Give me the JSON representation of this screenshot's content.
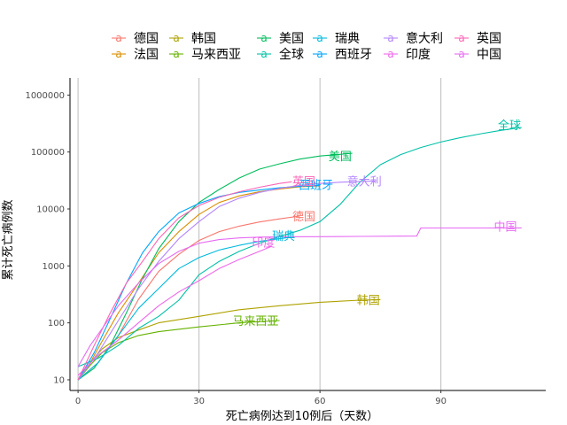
{
  "chart_data": {
    "type": "line",
    "title": "",
    "xlabel": "死亡病例达到10例后（天数）",
    "ylabel": "累计死亡病例数",
    "x_ticks": [
      0,
      30,
      60,
      90
    ],
    "x_tick_labels": [
      "0",
      "30",
      "60",
      "90"
    ],
    "xlim": [
      -2,
      116
    ],
    "y_scale": "log10",
    "y_ticks": [
      10,
      100,
      1000,
      10000,
      100000,
      1000000
    ],
    "y_tick_labels": [
      "10",
      "100",
      "1000",
      "10000",
      "100000",
      "1000000"
    ],
    "ylim": [
      6.5,
      2000000
    ],
    "grid": "vertical major lines only",
    "legend_position": "top",
    "series": [
      {
        "name": "德国",
        "color": "#F8766D",
        "points": [
          [
            0,
            10
          ],
          [
            5,
            20
          ],
          [
            10,
            60
          ],
          [
            15,
            260
          ],
          [
            20,
            800
          ],
          [
            25,
            1600
          ],
          [
            30,
            2800
          ],
          [
            35,
            4000
          ],
          [
            40,
            5000
          ],
          [
            45,
            5900
          ],
          [
            50,
            6700
          ],
          [
            55,
            7500
          ]
        ]
      },
      {
        "name": "法国",
        "color": "#DB8E00",
        "points": [
          [
            0,
            10
          ],
          [
            3,
            20
          ],
          [
            6,
            48
          ],
          [
            10,
            150
          ],
          [
            15,
            500
          ],
          [
            20,
            1700
          ],
          [
            25,
            4000
          ],
          [
            30,
            8000
          ],
          [
            35,
            13000
          ],
          [
            40,
            17000
          ],
          [
            45,
            20000
          ],
          [
            50,
            22500
          ],
          [
            55,
            24500
          ],
          [
            60,
            25500
          ]
        ]
      },
      {
        "name": "韩国",
        "color": "#AEA200",
        "points": [
          [
            0,
            10
          ],
          [
            3,
            20
          ],
          [
            6,
            35
          ],
          [
            10,
            55
          ],
          [
            15,
            75
          ],
          [
            20,
            100
          ],
          [
            30,
            130
          ],
          [
            40,
            170
          ],
          [
            50,
            200
          ],
          [
            60,
            230
          ],
          [
            70,
            250
          ],
          [
            75,
            256
          ]
        ]
      },
      {
        "name": "马来西亚",
        "color": "#64B200",
        "points": [
          [
            0,
            10
          ],
          [
            3,
            18
          ],
          [
            6,
            30
          ],
          [
            10,
            45
          ],
          [
            15,
            60
          ],
          [
            20,
            70
          ],
          [
            30,
            85
          ],
          [
            40,
            100
          ],
          [
            50,
            110
          ]
        ]
      },
      {
        "name": "美国",
        "color": "#00BD5C",
        "points": [
          [
            0,
            10
          ],
          [
            4,
            16
          ],
          [
            8,
            40
          ],
          [
            12,
            150
          ],
          [
            16,
            600
          ],
          [
            20,
            2000
          ],
          [
            25,
            6000
          ],
          [
            30,
            13000
          ],
          [
            35,
            22000
          ],
          [
            40,
            35000
          ],
          [
            45,
            50000
          ],
          [
            50,
            62000
          ],
          [
            55,
            75000
          ],
          [
            60,
            85000
          ],
          [
            68,
            95000
          ]
        ]
      },
      {
        "name": "全球",
        "color": "#00C1A7",
        "points": [
          [
            0,
            17
          ],
          [
            5,
            24
          ],
          [
            10,
            40
          ],
          [
            15,
            80
          ],
          [
            20,
            130
          ],
          [
            25,
            250
          ],
          [
            30,
            700
          ],
          [
            35,
            1200
          ],
          [
            40,
            1800
          ],
          [
            45,
            2500
          ],
          [
            50,
            3300
          ],
          [
            55,
            4200
          ],
          [
            60,
            6000
          ],
          [
            65,
            12000
          ],
          [
            70,
            30000
          ],
          [
            75,
            60000
          ],
          [
            80,
            90000
          ],
          [
            85,
            120000
          ],
          [
            90,
            150000
          ],
          [
            95,
            180000
          ],
          [
            100,
            210000
          ],
          [
            105,
            240000
          ],
          [
            110,
            270000
          ]
        ]
      },
      {
        "name": "瑞典",
        "color": "#00BADE",
        "points": [
          [
            0,
            10
          ],
          [
            5,
            20
          ],
          [
            10,
            60
          ],
          [
            15,
            180
          ],
          [
            20,
            400
          ],
          [
            25,
            900
          ],
          [
            30,
            1400
          ],
          [
            35,
            1900
          ],
          [
            40,
            2300
          ],
          [
            45,
            2700
          ],
          [
            50,
            3000
          ],
          [
            53,
            3200
          ]
        ]
      },
      {
        "name": "西班牙",
        "color": "#00A6FF",
        "points": [
          [
            0,
            10
          ],
          [
            4,
            30
          ],
          [
            8,
            120
          ],
          [
            12,
            500
          ],
          [
            16,
            1700
          ],
          [
            20,
            4000
          ],
          [
            25,
            8500
          ],
          [
            30,
            12500
          ],
          [
            35,
            16500
          ],
          [
            40,
            19500
          ],
          [
            45,
            21500
          ],
          [
            50,
            23500
          ],
          [
            55,
            25000
          ],
          [
            60,
            26000
          ]
        ]
      },
      {
        "name": "意大利",
        "color": "#B385FF",
        "points": [
          [
            0,
            10
          ],
          [
            5,
            30
          ],
          [
            10,
            110
          ],
          [
            15,
            400
          ],
          [
            20,
            1200
          ],
          [
            25,
            3000
          ],
          [
            30,
            6000
          ],
          [
            35,
            11000
          ],
          [
            40,
            15500
          ],
          [
            45,
            19500
          ],
          [
            50,
            23000
          ],
          [
            55,
            26000
          ],
          [
            60,
            28000
          ],
          [
            65,
            29500
          ],
          [
            70,
            30500
          ],
          [
            74,
            31000
          ]
        ]
      },
      {
        "name": "印度",
        "color": "#EF67EB",
        "points": [
          [
            0,
            12
          ],
          [
            5,
            27
          ],
          [
            10,
            50
          ],
          [
            15,
            100
          ],
          [
            20,
            200
          ],
          [
            25,
            350
          ],
          [
            30,
            550
          ],
          [
            35,
            900
          ],
          [
            40,
            1300
          ],
          [
            45,
            1800
          ],
          [
            48,
            2200
          ]
        ]
      },
      {
        "name": "英国",
        "color": "#FF63B6",
        "points": [
          [
            0,
            10
          ],
          [
            4,
            40
          ],
          [
            8,
            150
          ],
          [
            12,
            500
          ],
          [
            16,
            1200
          ],
          [
            20,
            3000
          ],
          [
            25,
            7000
          ],
          [
            30,
            11500
          ],
          [
            35,
            16000
          ],
          [
            40,
            20000
          ],
          [
            45,
            24000
          ],
          [
            50,
            28000
          ],
          [
            53,
            30000
          ]
        ]
      },
      {
        "name": "中国",
        "color": "#E76BF3",
        "points": [
          [
            0,
            17
          ],
          [
            3,
            40
          ],
          [
            6,
            80
          ],
          [
            10,
            200
          ],
          [
            15,
            500
          ],
          [
            20,
            1100
          ],
          [
            25,
            1800
          ],
          [
            30,
            2500
          ],
          [
            35,
            2900
          ],
          [
            40,
            3100
          ],
          [
            45,
            3200
          ],
          [
            50,
            3250
          ],
          [
            60,
            3260
          ],
          [
            70,
            3300
          ],
          [
            80,
            3330
          ],
          [
            84,
            3340
          ],
          [
            85,
            4630
          ],
          [
            90,
            4635
          ],
          [
            100,
            4640
          ],
          [
            110,
            4645
          ]
        ]
      }
    ],
    "labels": [
      {
        "text": "德国",
        "series": "德国",
        "at": [
          56,
          7500
        ]
      },
      {
        "text": "韩国",
        "series": "韩国",
        "at": [
          72,
          256
        ]
      },
      {
        "text": "马来西亚",
        "series": "马来西亚",
        "at": [
          44,
          110
        ]
      },
      {
        "text": "美国",
        "series": "美国",
        "at": [
          65,
          85000
        ]
      },
      {
        "text": "全球",
        "series": "全球",
        "at": [
          107,
          300000
        ]
      },
      {
        "text": "瑞典",
        "series": "瑞典",
        "at": [
          51,
          3400
        ]
      },
      {
        "text": "西班牙",
        "series": "西班牙",
        "at": [
          59,
          27000
        ]
      },
      {
        "text": "意大利",
        "series": "意大利",
        "at": [
          71,
          31000
        ]
      },
      {
        "text": "印度",
        "series": "印度",
        "at": [
          46,
          2600
        ]
      },
      {
        "text": "英国",
        "series": "英国",
        "at": [
          56,
          31000
        ]
      },
      {
        "text": "中国",
        "series": "中国",
        "at": [
          106,
          5000
        ]
      }
    ],
    "legend_glyph": "a",
    "legend": [
      [
        "德国",
        "韩国",
        "美国",
        "瑞典",
        "意大利",
        "英国"
      ],
      [
        "法国",
        "马来西亚",
        "全球",
        "西班牙",
        "印度",
        "中国"
      ]
    ]
  }
}
